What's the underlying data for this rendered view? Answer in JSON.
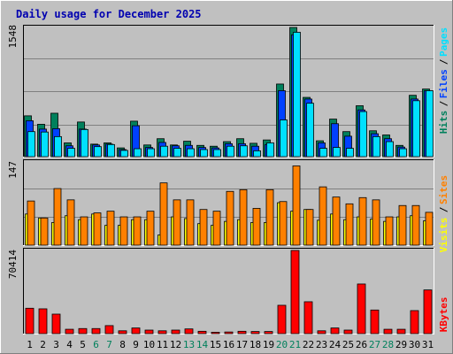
{
  "title": "Daily usage for December 2025",
  "colors": {
    "background": "#c0c0c0",
    "frame_dark": "#808080",
    "title_text": "#0000b0",
    "grid": "#808080",
    "hits": "#00805c",
    "files": "#0040ff",
    "pages": "#00e0ff",
    "visits": "#ffff00",
    "sites": "#ff8000",
    "kbytes": "#ff0000",
    "weekday_label": "#000000",
    "weekend_label": "#00805c"
  },
  "chart_data": [
    {
      "type": "bar",
      "title": "Daily usage for December 2025",
      "categories": [
        "1",
        "2",
        "3",
        "4",
        "5",
        "6",
        "7",
        "8",
        "9",
        "10",
        "11",
        "12",
        "13",
        "14",
        "15",
        "16",
        "17",
        "18",
        "19",
        "20",
        "21",
        "22",
        "23",
        "24",
        "25",
        "26",
        "27",
        "28",
        "29",
        "30",
        "31"
      ],
      "weekend_days": [
        "6",
        "7",
        "13",
        "14",
        "20",
        "21",
        "27",
        "28"
      ],
      "ymax_label": "1548",
      "ylim": [
        0,
        1548
      ],
      "series": [
        {
          "name": "Hits",
          "values": [
            489,
            388,
            520,
            165,
            415,
            150,
            165,
            105,
            425,
            140,
            215,
            140,
            185,
            135,
            125,
            180,
            215,
            160,
            200,
            870,
            1548,
            710,
            190,
            450,
            300,
            610,
            310,
            260,
            135,
            735,
            810
          ]
        },
        {
          "name": "Files",
          "values": [
            430,
            330,
            335,
            130,
            330,
            140,
            150,
            85,
            370,
            110,
            170,
            130,
            135,
            110,
            105,
            155,
            155,
            125,
            145,
            790,
            1460,
            690,
            165,
            395,
            245,
            560,
            275,
            215,
            115,
            690,
            790
          ]
        },
        {
          "name": "Pages",
          "values": [
            300,
            295,
            240,
            100,
            325,
            120,
            145,
            75,
            95,
            95,
            125,
            100,
            95,
            85,
            85,
            125,
            130,
            70,
            165,
            440,
            1490,
            640,
            100,
            110,
            100,
            540,
            240,
            180,
            95,
            670,
            790
          ]
        }
      ],
      "legend": [
        "Pages",
        "Files",
        "Hits"
      ]
    },
    {
      "type": "bar",
      "categories": [
        "1",
        "2",
        "3",
        "4",
        "5",
        "6",
        "7",
        "8",
        "9",
        "10",
        "11",
        "12",
        "13",
        "14",
        "15",
        "16",
        "17",
        "18",
        "19",
        "20",
        "21",
        "22",
        "23",
        "24",
        "25",
        "26",
        "27",
        "28",
        "29",
        "30",
        "31"
      ],
      "ymax_label": "147",
      "ylim": [
        0,
        147
      ],
      "series": [
        {
          "name": "Visits",
          "values": [
            55,
            48,
            40,
            52,
            45,
            55,
            35,
            35,
            45,
            45,
            18,
            50,
            47,
            38,
            35,
            42,
            45,
            40,
            40,
            75,
            60,
            63,
            44,
            55,
            45,
            50,
            46,
            42,
            50,
            52,
            43
          ]
        },
        {
          "name": "Sites",
          "values": [
            78,
            48,
            100,
            80,
            50,
            57,
            60,
            50,
            50,
            60,
            110,
            80,
            80,
            63,
            60,
            95,
            98,
            65,
            98,
            77,
            140,
            63,
            103,
            85,
            73,
            84,
            80,
            50,
            70,
            70,
            58
          ]
        }
      ],
      "legend": [
        "Sites",
        "Visits"
      ]
    },
    {
      "type": "bar",
      "categories": [
        "1",
        "2",
        "3",
        "4",
        "5",
        "6",
        "7",
        "8",
        "9",
        "10",
        "11",
        "12",
        "13",
        "14",
        "15",
        "16",
        "17",
        "18",
        "19",
        "20",
        "21",
        "22",
        "23",
        "24",
        "25",
        "26",
        "27",
        "28",
        "29",
        "30",
        "31"
      ],
      "ymax_label": "70414",
      "ylim": [
        0,
        70414
      ],
      "series": [
        {
          "name": "KBytes",
          "values": [
            21500,
            21000,
            16500,
            3700,
            4300,
            4300,
            6800,
            2400,
            4800,
            3000,
            2400,
            3000,
            4000,
            2000,
            1200,
            1400,
            2000,
            1800,
            1800,
            24000,
            70414,
            27000,
            2400,
            4800,
            3000,
            42000,
            20000,
            3700,
            3700,
            19500,
            37000
          ]
        }
      ],
      "legend": [
        "KBytes"
      ]
    }
  ]
}
